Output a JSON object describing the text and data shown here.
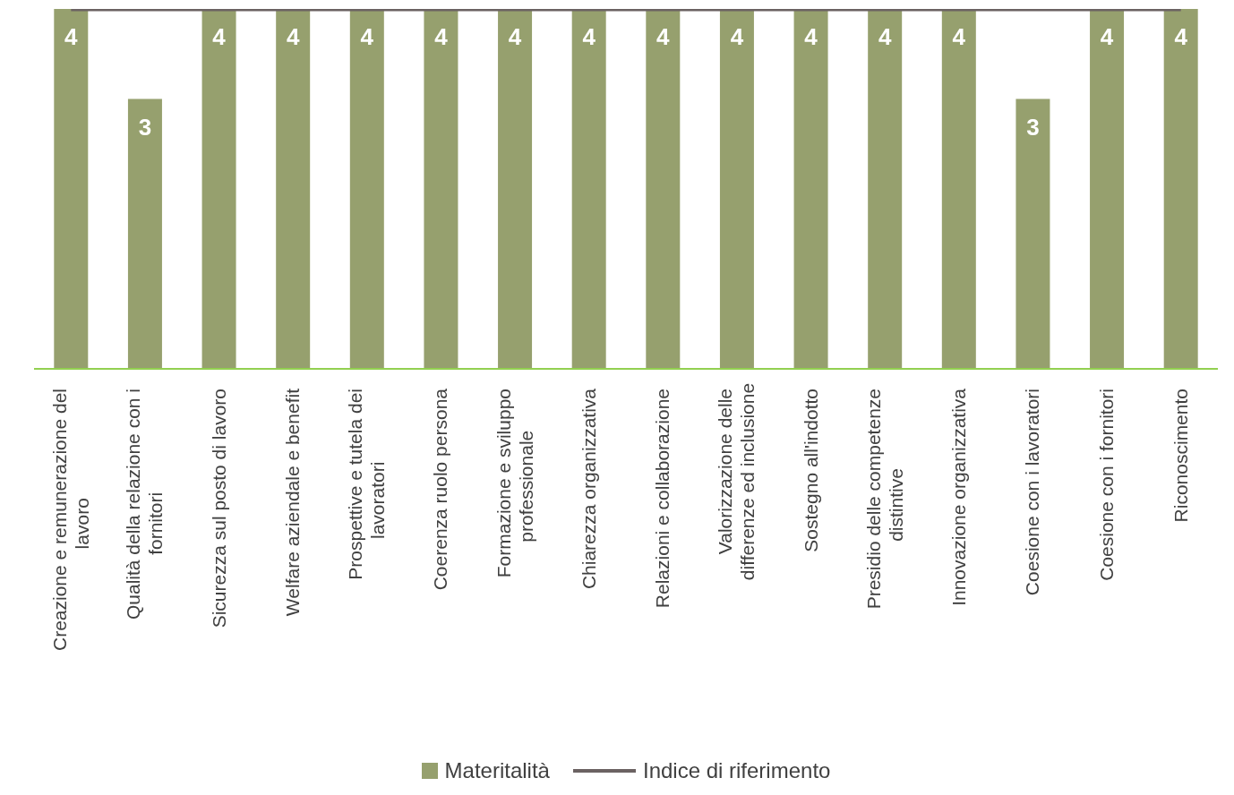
{
  "chart_data": {
    "type": "bar",
    "categories": [
      "Creazione e remunerazione del lavoro",
      "Qualità della relazione con i fornitori",
      "Sicurezza sul posto di lavoro",
      "Welfare aziendale e benefit",
      "Prospettive e tutela dei lavoratori",
      "Coerenza ruolo persona",
      "Formazione e sviluppo professionale",
      "Chiarezza organizzativa",
      "Relazioni e collaborazione",
      "Valorizzazione delle differenze ed inclusione",
      "Sostegno all'indotto",
      "Presidio delle competenze distintive",
      "Innovazione organizzativa",
      "Coesione con i lavoratori",
      "Coesione con i fornitori",
      "Riconoscimento"
    ],
    "series": [
      {
        "name": "Materitalità",
        "color": "#96a06e",
        "values": [
          4,
          3,
          4,
          4,
          4,
          4,
          4,
          4,
          4,
          4,
          4,
          4,
          4,
          3,
          4,
          4
        ],
        "value_labels": [
          "4",
          "3",
          "4",
          "4",
          "4",
          "4",
          "4",
          "4",
          "4",
          "4",
          "4",
          "4",
          "4",
          "3",
          "4",
          "4"
        ]
      },
      {
        "name": "Indice di riferimento",
        "type": "line",
        "color": "#6b6262",
        "values": [
          4,
          4,
          4,
          4,
          4,
          4,
          4,
          4,
          4,
          4,
          4,
          4,
          4,
          4,
          4,
          4
        ]
      }
    ],
    "ylim": [
      0,
      4
    ],
    "legend": "bottom",
    "tick_labels": "x"
  }
}
